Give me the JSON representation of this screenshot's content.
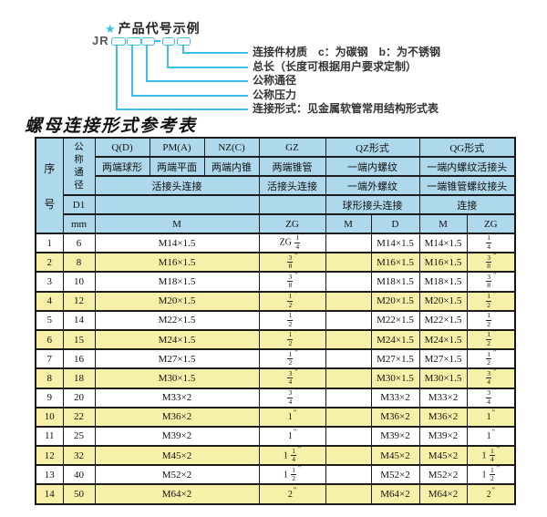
{
  "colors": {
    "accent": "#3cc0e6",
    "header_bg": "#aed9ec",
    "row_alt": "#f6f0a8"
  },
  "product_code": {
    "star": "★",
    "title": "产品代号示例",
    "prefix": "JR",
    "labels": [
      "连接件材质　c：为碳钢　b：为不锈钢",
      "总长（长度可根据用户要求定制）",
      "公称通径",
      "公称压力",
      "连接形式：见金属软管常用结构形式表"
    ]
  },
  "table": {
    "title": "螺母连接形式参考表",
    "header": {
      "seq": "序号",
      "dn": "公称通径",
      "d1": "D1",
      "unit": "mm",
      "q": "Q(D)",
      "pm": "PM(A)",
      "nz": "NZ(C)",
      "gz": "GZ",
      "qz": "QZ形式",
      "qg": "QG形式",
      "q_desc": "两端球形",
      "pm_desc": "两端平面",
      "nz_desc": "两端内锥",
      "gz_desc": "两端锥管",
      "qz_desc1": "一端内螺纹",
      "qg_desc1": "一端内螺纹活接头",
      "union_conn": "活接头连接",
      "gz_conn": "活接头连接",
      "qz_desc2": "一端外螺纹",
      "qg_desc2": "一端锥管螺纹接头",
      "qz_conn": "球形接头连接",
      "qg_conn": "连接",
      "m1": "M",
      "zg1": "ZG",
      "m2": "M",
      "d": "D",
      "m3": "M",
      "zg2": "ZG"
    },
    "rows": [
      {
        "seq": "1",
        "dn": "6",
        "m": "M14×1.5",
        "gz": "ZG 1/4\"",
        "qz_m": "",
        "qz_d": "M14×1.5",
        "qg_m": "M14×1.5",
        "qg_zg": "1/4\""
      },
      {
        "seq": "2",
        "dn": "8",
        "m": "M16×1.5",
        "gz": "3/8\"",
        "qz_m": "",
        "qz_d": "M16×1.5",
        "qg_m": "M16×1.5",
        "qg_zg": "3/8\""
      },
      {
        "seq": "3",
        "dn": "10",
        "m": "M18×1.5",
        "gz": "3/8\"",
        "qz_m": "",
        "qz_d": "M18×1.5",
        "qg_m": "M18×1.5",
        "qg_zg": "3/8\""
      },
      {
        "seq": "4",
        "dn": "12",
        "m": "M20×1.5",
        "gz": "1/2\"",
        "qz_m": "",
        "qz_d": "M20×1.5",
        "qg_m": "M20×1.5",
        "qg_zg": "1/2\""
      },
      {
        "seq": "5",
        "dn": "14",
        "m": "M22×1.5",
        "gz": "1/2\"",
        "qz_m": "",
        "qz_d": "M22×1.5",
        "qg_m": "M22×1.5",
        "qg_zg": "1/2\""
      },
      {
        "seq": "6",
        "dn": "15",
        "m": "M24×1.5",
        "gz": "1/2\"",
        "qz_m": "",
        "qz_d": "M24×1.5",
        "qg_m": "M24×1.5",
        "qg_zg": "1/2\""
      },
      {
        "seq": "7",
        "dn": "16",
        "m": "M27×1.5",
        "gz": "1/2\"",
        "qz_m": "",
        "qz_d": "M27×1.5",
        "qg_m": "M27×1.5",
        "qg_zg": "1/2\""
      },
      {
        "seq": "8",
        "dn": "18",
        "m": "M30×1.5",
        "gz": "3/4\"",
        "qz_m": "",
        "qz_d": "M30×1.5",
        "qg_m": "M30×1.5",
        "qg_zg": "3/4\""
      },
      {
        "seq": "9",
        "dn": "20",
        "m": "M33×2",
        "gz": "3/4\"",
        "qz_m": "",
        "qz_d": "M33×2",
        "qg_m": "M33×2",
        "qg_zg": "3/4\""
      },
      {
        "seq": "10",
        "dn": "22",
        "m": "M36×2",
        "gz": "1\"",
        "qz_m": "",
        "qz_d": "M36×2",
        "qg_m": "M36×2",
        "qg_zg": "1\""
      },
      {
        "seq": "11",
        "dn": "25",
        "m": "M39×2",
        "gz": "1\"",
        "qz_m": "",
        "qz_d": "M39×2",
        "qg_m": "M39×2",
        "qg_zg": "1\""
      },
      {
        "seq": "12",
        "dn": "32",
        "m": "M45×2",
        "gz": "1 1/4\"",
        "qz_m": "",
        "qz_d": "M45×2",
        "qg_m": "M45×2",
        "qg_zg": "1 1/4\""
      },
      {
        "seq": "13",
        "dn": "40",
        "m": "M52×2",
        "gz": "1 1/2\"",
        "qz_m": "",
        "qz_d": "M52×2",
        "qg_m": "M52×2",
        "qg_zg": "1 1/2\""
      },
      {
        "seq": "14",
        "dn": "50",
        "m": "M64×2",
        "gz": "2\"",
        "qz_m": "",
        "qz_d": "M64×2",
        "qg_m": "M64×2",
        "qg_zg": "2\""
      }
    ]
  }
}
